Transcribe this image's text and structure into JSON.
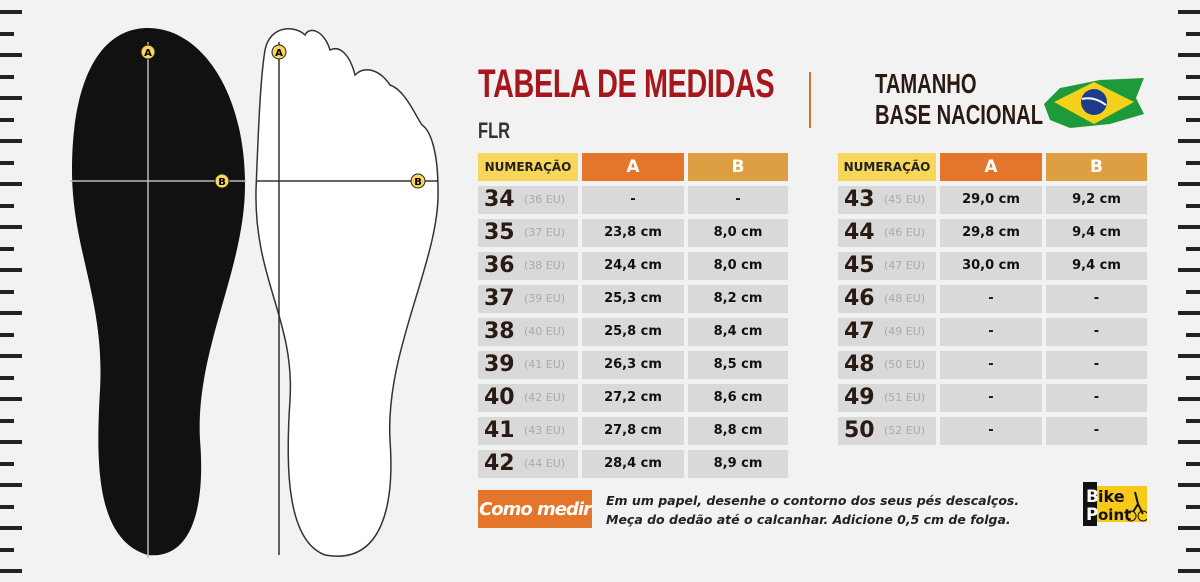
{
  "header": {
    "title": "TABELA DE MEDIDAS",
    "subtitle": "FLR",
    "base_line1": "TAMANHO",
    "base_line2": "BASE NACIONAL"
  },
  "diagram": {
    "label_a": "A",
    "label_b": "B"
  },
  "columns": {
    "num": "NUMERAÇÃO",
    "a": "A",
    "b": "B"
  },
  "left_table": [
    {
      "size": "34",
      "eu": "(36 EU)",
      "a": "-",
      "b": "-"
    },
    {
      "size": "35",
      "eu": "(37 EU)",
      "a": "23,8 cm",
      "b": "8,0 cm"
    },
    {
      "size": "36",
      "eu": "(38 EU)",
      "a": "24,4 cm",
      "b": "8,0 cm"
    },
    {
      "size": "37",
      "eu": "(39 EU)",
      "a": "25,3 cm",
      "b": "8,2 cm"
    },
    {
      "size": "38",
      "eu": "(40 EU)",
      "a": "25,8 cm",
      "b": "8,4 cm"
    },
    {
      "size": "39",
      "eu": "(41 EU)",
      "a": "26,3 cm",
      "b": "8,5 cm"
    },
    {
      "size": "40",
      "eu": "(42 EU)",
      "a": "27,2 cm",
      "b": "8,6 cm"
    },
    {
      "size": "41",
      "eu": "(43 EU)",
      "a": "27,8 cm",
      "b": "8,8 cm"
    },
    {
      "size": "42",
      "eu": "(44 EU)",
      "a": "28,4 cm",
      "b": "8,9 cm"
    }
  ],
  "right_table": [
    {
      "size": "43",
      "eu": "(45 EU)",
      "a": "29,0 cm",
      "b": "9,2 cm"
    },
    {
      "size": "44",
      "eu": "(46 EU)",
      "a": "29,8 cm",
      "b": "9,4 cm"
    },
    {
      "size": "45",
      "eu": "(47 EU)",
      "a": "30,0 cm",
      "b": "9,4 cm"
    },
    {
      "size": "46",
      "eu": "(48 EU)",
      "a": "-",
      "b": "-"
    },
    {
      "size": "47",
      "eu": "(49 EU)",
      "a": "-",
      "b": "-"
    },
    {
      "size": "48",
      "eu": "(50 EU)",
      "a": "-",
      "b": "-"
    },
    {
      "size": "49",
      "eu": "(51 EU)",
      "a": "-",
      "b": "-"
    },
    {
      "size": "50",
      "eu": "(52 EU)",
      "a": "-",
      "b": "-"
    }
  ],
  "footer": {
    "como_medir": "Como medir",
    "line1": "Em um papel, desenhe o contorno dos seus pés descalços.",
    "line2": "Meça do dedão até o calcanhar. Adicione 0,5 cm de folga."
  },
  "logo": {
    "text1": "Bike",
    "text2": "Point"
  },
  "colors": {
    "title": "#a5161d",
    "orange": "#e3762a",
    "gold": "#de9e42",
    "yellow": "#f7d65a"
  }
}
